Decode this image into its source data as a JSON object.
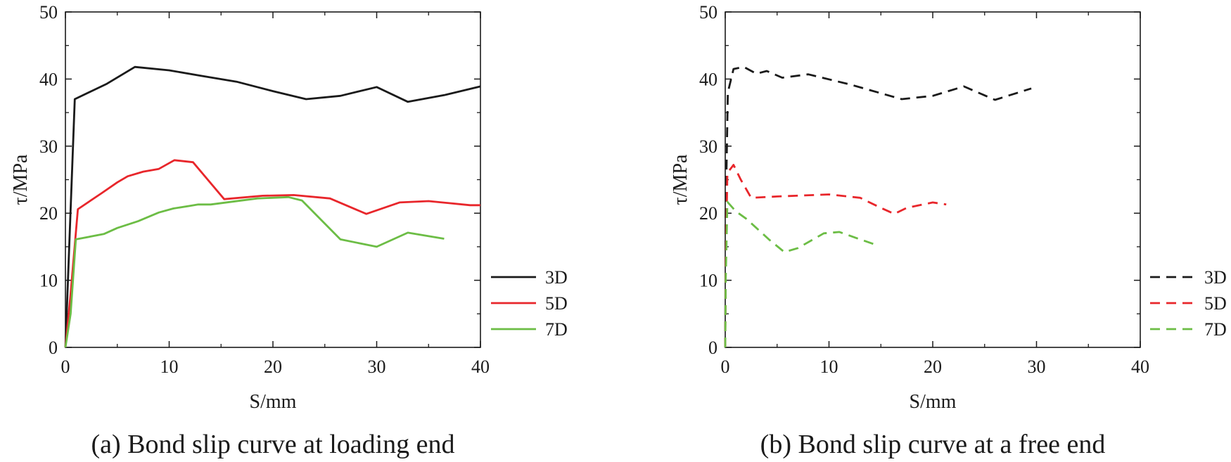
{
  "chart_data": [
    {
      "type": "line",
      "panel": "a",
      "caption": "(a) Bond slip curve at loading end",
      "xlabel": "S/mm",
      "ylabel": "τ/MPa",
      "xlim": [
        0,
        40
      ],
      "ylim": [
        0,
        50
      ],
      "xticks": [
        0,
        10,
        20,
        30,
        40
      ],
      "yticks": [
        0,
        10,
        20,
        30,
        40,
        50
      ],
      "xtick_labels": [
        "0",
        "10",
        "20",
        "30",
        "40"
      ],
      "ytick_labels": [
        "0",
        "10",
        "20",
        "30",
        "40",
        "50"
      ],
      "line_style": "solid",
      "legend_position": "right-middle",
      "series": [
        {
          "name": "3D",
          "color": "#1a1a1a",
          "x": [
            0,
            0.9,
            4,
            6.7,
            10,
            13,
            16.5,
            20,
            23.2,
            26.5,
            30,
            33,
            36.5,
            40
          ],
          "y": [
            0,
            37,
            39.3,
            41.8,
            41.3,
            40.5,
            39.6,
            38.2,
            37,
            37.5,
            38.8,
            36.6,
            37.6,
            38.9
          ]
        },
        {
          "name": "5D",
          "color": "#e8262b",
          "x": [
            0,
            0.5,
            1.2,
            3.5,
            5,
            6,
            7.5,
            9,
            10.5,
            12.3,
            15.3,
            19,
            22,
            25.5,
            29,
            32.2,
            35,
            39,
            40
          ],
          "y": [
            0,
            8,
            20.6,
            23,
            24.6,
            25.5,
            26.2,
            26.6,
            27.9,
            27.6,
            22.1,
            22.6,
            22.7,
            22.2,
            19.9,
            21.6,
            21.8,
            21.2,
            21.2
          ]
        },
        {
          "name": "7D",
          "color": "#6cbd45",
          "x": [
            0,
            0.5,
            1,
            3.7,
            5,
            7,
            9,
            10.4,
            12,
            12.8,
            14,
            18.5,
            21.5,
            22.8,
            26.5,
            30,
            33,
            36.5
          ],
          "y": [
            0,
            5,
            16.1,
            16.9,
            17.8,
            18.8,
            20.1,
            20.7,
            21.1,
            21.3,
            21.3,
            22.2,
            22.4,
            21.9,
            16.1,
            15,
            17.1,
            16.2
          ]
        }
      ]
    },
    {
      "type": "line",
      "panel": "b",
      "caption": "(b) Bond slip curve at a free end",
      "xlabel": "S/mm",
      "ylabel": "τ/MPa",
      "xlim": [
        0,
        40
      ],
      "ylim": [
        0,
        50
      ],
      "xticks": [
        0,
        10,
        20,
        30,
        40
      ],
      "yticks": [
        0,
        10,
        20,
        30,
        40,
        50
      ],
      "xtick_labels": [
        "0",
        "10",
        "20",
        "30",
        "40"
      ],
      "ytick_labels": [
        "0",
        "10",
        "20",
        "30",
        "40",
        "50"
      ],
      "line_style": "dashed",
      "legend_position": "right-middle",
      "series": [
        {
          "name": "3D",
          "color": "#1a1a1a",
          "x": [
            0,
            0.05,
            0.25,
            0.8,
            1.8,
            3,
            4,
            5.5,
            8,
            12,
            17,
            20,
            23,
            26,
            29.5
          ],
          "y": [
            0,
            20,
            38,
            41.5,
            41.8,
            40.8,
            41.2,
            40.2,
            40.7,
            39.2,
            37,
            37.5,
            38.9,
            36.9,
            38.6
          ]
        },
        {
          "name": "5D",
          "color": "#e8262b",
          "x": [
            0,
            0.05,
            0.2,
            0.8,
            1.5,
            2.5,
            5,
            10,
            13,
            15,
            16.3,
            17.5,
            20,
            21.3
          ],
          "y": [
            0,
            12,
            26,
            27.2,
            25,
            22.3,
            22.5,
            22.8,
            22.3,
            20.8,
            19.9,
            20.8,
            21.6,
            21.3
          ]
        },
        {
          "name": "7D",
          "color": "#6cbd45",
          "x": [
            0,
            0.05,
            0.2,
            1,
            2,
            3,
            4.2,
            5.7,
            7,
            9.5,
            11,
            13,
            14.5
          ],
          "y": [
            0,
            10,
            21.7,
            20.3,
            19.2,
            17.8,
            16.1,
            14.2,
            14.8,
            17,
            17.2,
            16.1,
            15.3
          ]
        }
      ]
    }
  ]
}
